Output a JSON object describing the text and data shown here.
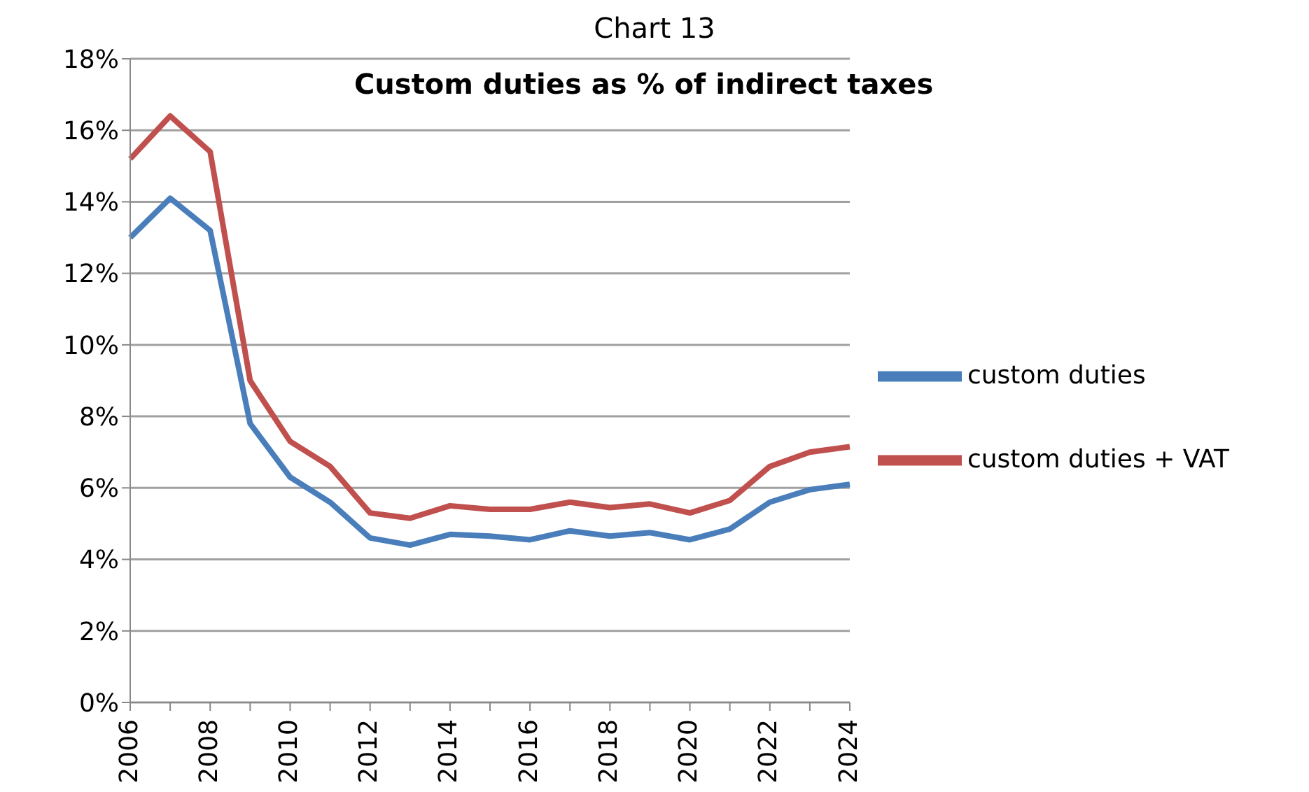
{
  "chart_data": {
    "type": "line",
    "title": "Chart 13",
    "subtitle": "Custom duties as % of indirect taxes",
    "categories": [
      "2006",
      null,
      "2008",
      null,
      "2010",
      null,
      "2012",
      null,
      "2014",
      null,
      "2016",
      null,
      "2018",
      null,
      "2020",
      null,
      "2022",
      null,
      "2024"
    ],
    "series": [
      {
        "name": "custom duties",
        "color": "#4a7ebb",
        "values": [
          13.0,
          14.1,
          13.2,
          7.8,
          6.3,
          5.6,
          4.6,
          4.4,
          4.7,
          4.65,
          4.55,
          4.8,
          4.65,
          4.75,
          4.55,
          4.85,
          5.6,
          5.95,
          6.1
        ]
      },
      {
        "name": "custom duties + VAT",
        "color": "#c0504d",
        "values": [
          15.2,
          16.4,
          15.4,
          9.0,
          7.3,
          6.6,
          5.3,
          5.15,
          5.5,
          5.4,
          5.4,
          5.6,
          5.45,
          5.55,
          5.3,
          5.65,
          6.6,
          7.0,
          7.15
        ]
      }
    ],
    "ylim": [
      0,
      18
    ],
    "yticks": [
      {
        "value": 0,
        "label": "0%"
      },
      {
        "value": 2,
        "label": "2%"
      },
      {
        "value": 4,
        "label": "4%"
      },
      {
        "value": 6,
        "label": "6%"
      },
      {
        "value": 8,
        "label": "8%"
      },
      {
        "value": 10,
        "label": "10%"
      },
      {
        "value": 12,
        "label": "12%"
      },
      {
        "value": 14,
        "label": "14%"
      },
      {
        "value": 16,
        "label": "16%"
      },
      {
        "value": 18,
        "label": "18%"
      }
    ],
    "grid": "y",
    "legend": "right",
    "marker": "none",
    "line_style": "solid"
  }
}
